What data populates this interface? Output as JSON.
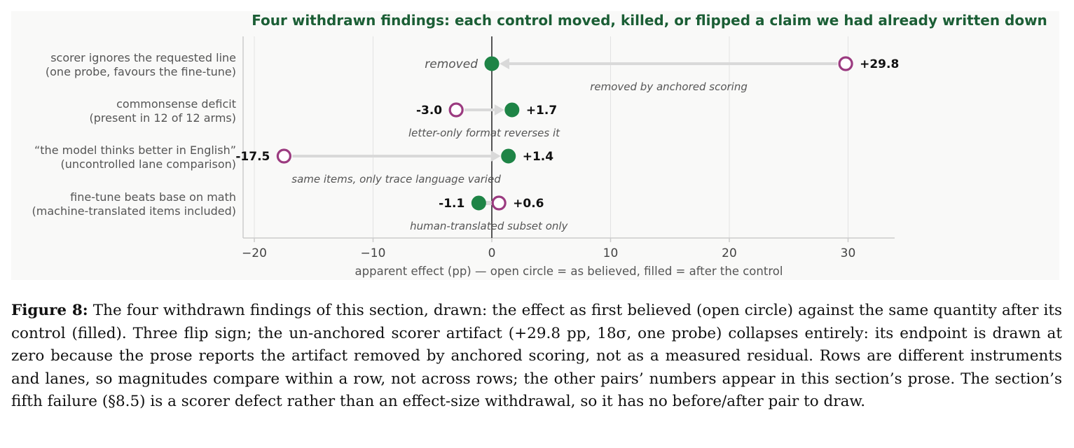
{
  "chart_data": {
    "type": "dumbbell",
    "title": "Four withdrawn findings: each control moved, killed, or flipped a claim we had already written down",
    "xlabel": "apparent effect (pp)   —   open circle = as believed, filled = after the control",
    "xlim": [
      -21,
      34.5
    ],
    "xticks": [
      -20,
      -10,
      0,
      10,
      20,
      30
    ],
    "xtick_labels": [
      "−20",
      "−10",
      "0",
      "10",
      "20",
      "30"
    ],
    "grid": "vertical",
    "reference_line": 0,
    "colors": {
      "title": "#1b5e35",
      "before": "#9b3b80",
      "after": "#1e8446",
      "arrow": "#d9d9d9",
      "panel": "#f9f9f8",
      "axis": "#cccccc",
      "zero_line": "#555555",
      "label_text": "#555555"
    },
    "rows": [
      {
        "label_line1": "scorer ignores the requested line",
        "label_line2": "(one probe, favours the fine-tune)",
        "before": 29.8,
        "before_label": "+29.8",
        "after": 0,
        "after_label": "removed",
        "annotation": "removed by anchored scoring"
      },
      {
        "label_line1": "commonsense deficit",
        "label_line2": "(present in 12 of 12 arms)",
        "before": -3.0,
        "before_label": "-3.0",
        "after": 1.7,
        "after_label": "+1.7",
        "annotation": "letter-only format reverses it"
      },
      {
        "label_line1": "“the model thinks better in English”",
        "label_line2": "(uncontrolled lane comparison)",
        "before": -17.5,
        "before_label": "-17.5",
        "after": 1.4,
        "after_label": "+1.4",
        "annotation": "same items, only trace language varied"
      },
      {
        "label_line1": "fine-tune beats base on math",
        "label_line2": "(machine-translated items included)",
        "before": 0.6,
        "before_label": "+0.6",
        "after": -1.1,
        "after_label": "-1.1",
        "annotation": "human-translated subset only"
      }
    ]
  },
  "caption": {
    "label": "Figure 8:",
    "text": " The four withdrawn findings of this section, drawn: the effect as first believed (open circle) against the same quantity after its control (filled). Three flip sign; the un-anchored scorer artifact (+29.8 pp, 18σ, one probe) collapses entirely: its endpoint is drawn at zero because the prose reports the artifact removed by anchored scoring, not as a measured residual. Rows are different instruments and lanes, so magnitudes compare within a row, not across rows; the other pairs’ numbers appear in this section’s prose. The section’s fifth failure (§8.5) is a scorer defect rather than an effect-size withdrawal, so it has no before/after pair to draw."
  }
}
